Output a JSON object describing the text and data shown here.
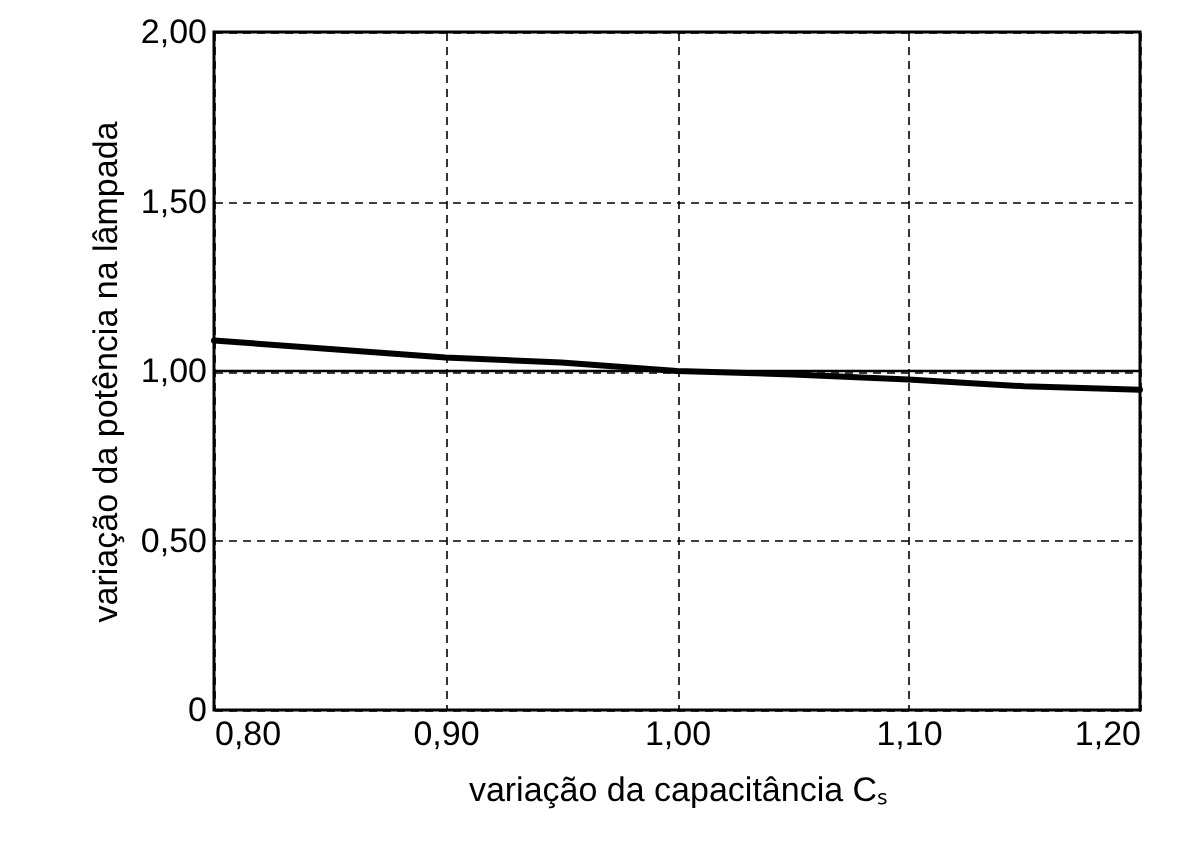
{
  "chart_data": {
    "type": "line",
    "xlabel": "variação da capacitância Cₛ",
    "ylabel": "variação da potência  na lâmpada",
    "x": [
      0.8,
      0.85,
      0.9,
      0.95,
      1.0,
      1.05,
      1.1,
      1.15,
      1.2
    ],
    "series": [
      {
        "color": "#000000",
        "values": [
          1.09,
          1.065,
          1.04,
          1.025,
          1.0,
          0.99,
          0.975,
          0.955,
          0.945
        ]
      }
    ],
    "xlim": [
      0.8,
      1.2
    ],
    "ylim": [
      0,
      2.0
    ],
    "xticks": [
      {
        "value": 0.8,
        "label": "0,80"
      },
      {
        "value": 0.9,
        "label": "0,90"
      },
      {
        "value": 1.0,
        "label": "1,00"
      },
      {
        "value": 1.1,
        "label": "1,10"
      },
      {
        "value": 1.2,
        "label": "1,20"
      }
    ],
    "yticks": [
      0,
      {
        "value": 0.5,
        "label": "0,50"
      },
      {
        "value": 1.0,
        "label": "1,00"
      },
      {
        "value": 1.5,
        "label": "1,50"
      },
      {
        "value": 2.0,
        "label": "2,00"
      }
    ],
    "ref_lines": [
      {
        "axis": "y",
        "value": 1.0,
        "color": "#000000",
        "line_style": "solid"
      }
    ],
    "grid": true,
    "line_style": "solid",
    "marker": "none"
  }
}
